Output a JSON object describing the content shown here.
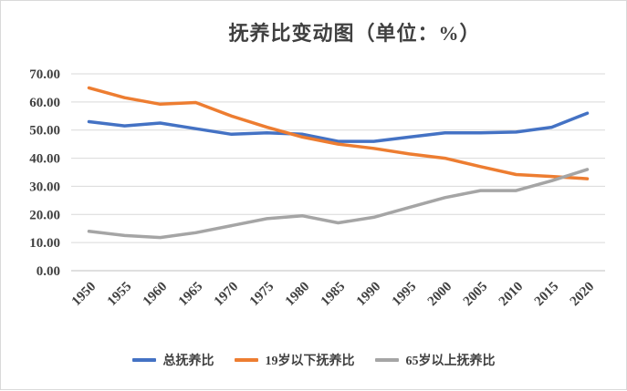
{
  "chart_data": {
    "type": "line",
    "title": "抚养比变动图（单位：%）",
    "x": [
      "1950",
      "1955",
      "1960",
      "1965",
      "1970",
      "1975",
      "1980",
      "1985",
      "1990",
      "1995",
      "2000",
      "2005",
      "2010",
      "2015",
      "2020"
    ],
    "ylim": [
      0,
      70
    ],
    "yticks": [
      "0.00",
      "10.00",
      "20.00",
      "30.00",
      "40.00",
      "50.00",
      "60.00",
      "70.00"
    ],
    "grid": true,
    "legend_position": "bottom",
    "series": [
      {
        "name": "总抚养比",
        "color": "#4472C4",
        "values": [
          53.0,
          51.5,
          52.5,
          50.5,
          48.5,
          49.0,
          48.5,
          46.0,
          46.0,
          47.5,
          49.0,
          49.0,
          49.3,
          51.0,
          56.0
        ]
      },
      {
        "name": "19岁以下抚养比",
        "color": "#ED7D31",
        "values": [
          65.0,
          61.5,
          59.2,
          59.8,
          55.0,
          51.0,
          47.5,
          45.0,
          43.5,
          41.5,
          40.0,
          37.0,
          34.2,
          33.5,
          32.7
        ]
      },
      {
        "name": "65岁以上抚养比",
        "color": "#A5A5A5",
        "values": [
          14.0,
          12.5,
          11.8,
          13.5,
          16.0,
          18.5,
          19.5,
          17.0,
          19.0,
          22.5,
          26.0,
          28.5,
          28.5,
          32.0,
          36.0
        ]
      }
    ]
  }
}
